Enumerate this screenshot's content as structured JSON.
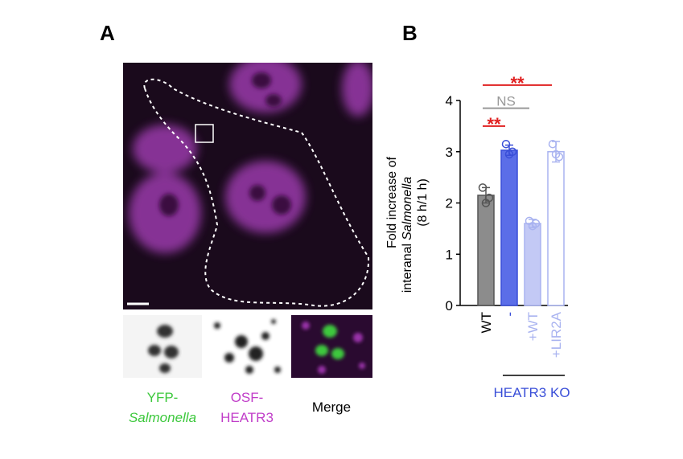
{
  "panel_a": {
    "label": "A",
    "captions": [
      {
        "line1": "YFP-",
        "line2": "Salmonella"
      },
      {
        "line1": "OSF-",
        "line2": "HEATR3"
      },
      {
        "line1": "Merge"
      }
    ]
  },
  "chart_data": {
    "type": "bar",
    "panel_label": "B",
    "ylabel": {
      "line1": "Fold increase of",
      "line2a": "interanal",
      "line2b": "Salmonella",
      "line3": "(8 h/1 h)"
    },
    "categories": [
      "WT",
      "-",
      "+WT",
      "+LIR2A"
    ],
    "values": [
      2.15,
      3.03,
      1.6,
      3.0
    ],
    "errors": [
      0.15,
      0.1,
      0.08,
      0.2
    ],
    "points": [
      [
        2.3,
        2.1,
        2.0
      ],
      [
        3.15,
        3.0,
        2.95
      ],
      [
        1.65,
        1.6,
        1.55
      ],
      [
        3.15,
        2.9,
        2.95
      ]
    ],
    "colors": [
      "#555555",
      "#3a4fd8",
      "#a9b3f0",
      "#a9b3f0"
    ],
    "fills": [
      "#8c8c8c",
      "#5b6ee8",
      "#c3c9f5",
      "#ffffff"
    ],
    "label_colors": [
      "#000000",
      "#3a4fd8",
      "#a9b3f0",
      "#a9b3f0"
    ],
    "ylim": [
      0,
      4
    ],
    "yticks": [
      0,
      1,
      2,
      3,
      4
    ],
    "annotations": [
      {
        "label": "**",
        "y": 4.3,
        "color": "#e02020"
      },
      {
        "label": "NS",
        "y": 3.85,
        "color": "#999999"
      },
      {
        "label": "**",
        "y": 3.5,
        "color": "#e02020"
      }
    ],
    "group_label": "HEATR3 KO"
  }
}
